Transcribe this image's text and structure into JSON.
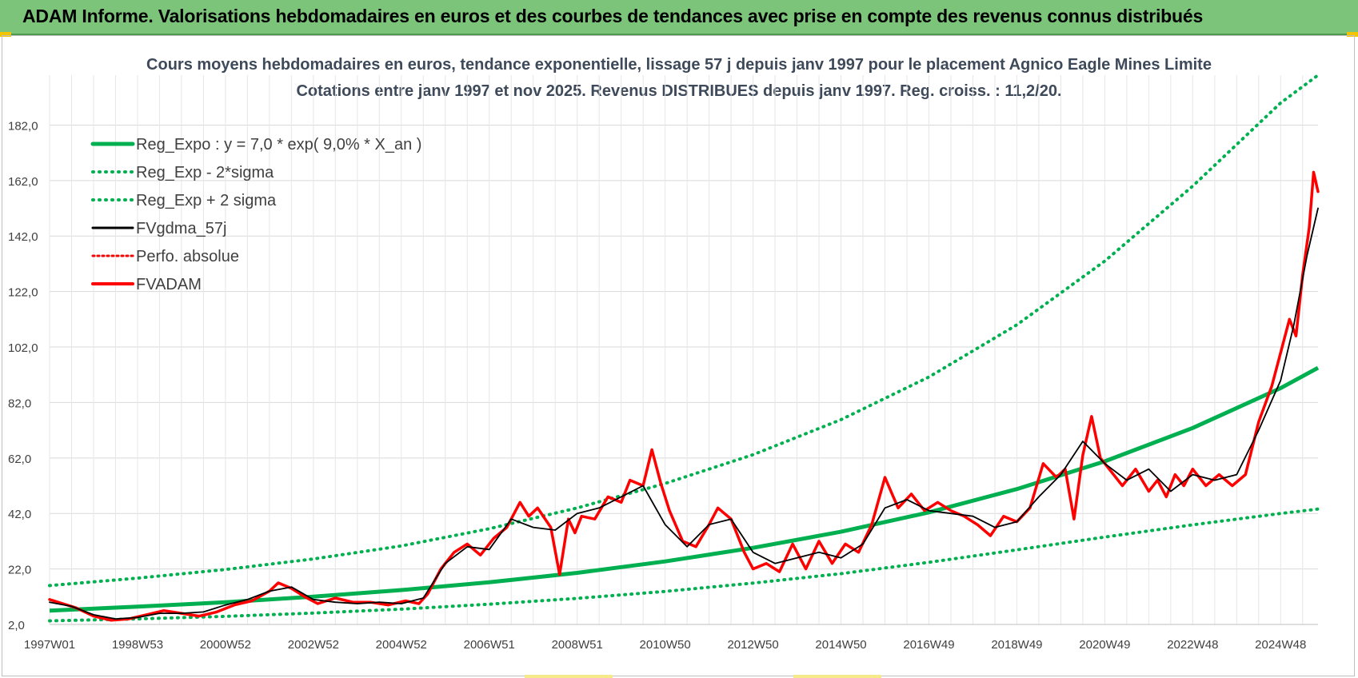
{
  "header": {
    "title": "ADAM Informe. Valorisations hebdomadaires en euros et des courbes de tendances avec prise en compte des revenus connus distribués"
  },
  "colors": {
    "banner": "#7cc47a",
    "trend_green": "#00b050",
    "smooth_black": "#000000",
    "price_red": "#ff0000",
    "grid": "#d9d9d9"
  },
  "chart_data": {
    "type": "line",
    "title": "Cours moyens hebdomadaires en euros, tendance exponentielle, lissage 57 j depuis janv 1997 pour le placement Agnico Eagle Mines Limite",
    "subtitle": "Cotations entre janv 1997 et nov 2025. Revenus DISTRIBUES depuis janv 1997. Reg. croiss. : 11,2/20.",
    "xlabel": "",
    "ylabel": "",
    "ylim": [
      2,
      200
    ],
    "xlim": [
      1997.0,
      2025.85
    ],
    "yticks": [
      "2,0",
      "22,0",
      "42,0",
      "62,0",
      "82,0",
      "102,0",
      "122,0",
      "142,0",
      "162,0",
      "182,0"
    ],
    "ytick_values": [
      2,
      22,
      42,
      62,
      82,
      102,
      122,
      142,
      162,
      182
    ],
    "xticks": [
      "1997W01",
      "1998W53",
      "2000W52",
      "2002W52",
      "2004W52",
      "2006W51",
      "2008W51",
      "2010W50",
      "2012W50",
      "2014W50",
      "2016W49",
      "2018W49",
      "2020W49",
      "2022W48",
      "2024W48"
    ],
    "xtick_values": [
      1997.0,
      1999.0,
      2001.0,
      2003.0,
      2005.0,
      2007.0,
      2009.0,
      2011.0,
      2013.0,
      2015.0,
      2017.0,
      2019.0,
      2021.0,
      2023.0,
      2025.0
    ],
    "legend": {
      "placement": "top-left",
      "entries": [
        "Reg_Expo : y = 7,0 * exp( 9,0% *  X_an )",
        "Reg_Exp - 2*sigma",
        "Reg_Exp + 2 sigma",
        "FVgdma_57j",
        "Perfo. absolue",
        "FVADAM"
      ]
    },
    "series": [
      {
        "name": "Reg_Expo : y = 7,0 * exp( 9,0% *  X_an )",
        "style": "solid",
        "color": "#00b050",
        "x": [
          1997.0,
          1999.0,
          2001.0,
          2003.0,
          2005.0,
          2007.0,
          2009.0,
          2011.0,
          2013.0,
          2015.0,
          2017.0,
          2019.0,
          2021.0,
          2023.0,
          2025.0,
          2025.85
        ],
        "values": [
          7.0,
          8.4,
          10.0,
          12.0,
          14.4,
          17.2,
          20.6,
          24.7,
          29.6,
          35.4,
          42.4,
          50.8,
          60.8,
          72.8,
          87.2,
          94.5
        ]
      },
      {
        "name": "Reg_Exp - 2*sigma",
        "style": "dotted",
        "color": "#00b050",
        "x": [
          1997.0,
          1999.0,
          2001.0,
          2003.0,
          2005.0,
          2007.0,
          2009.0,
          2011.0,
          2013.0,
          2015.0,
          2017.0,
          2019.0,
          2021.0,
          2023.0,
          2025.0,
          2025.85
        ],
        "values": [
          3.3,
          4.0,
          4.9,
          6.1,
          7.5,
          9.3,
          11.4,
          13.9,
          16.9,
          20.3,
          24.4,
          28.9,
          33.5,
          37.9,
          42.0,
          43.6
        ]
      },
      {
        "name": "Reg_Exp + 2 sigma",
        "style": "dotted",
        "color": "#00b050",
        "x": [
          1997.0,
          1999.0,
          2001.0,
          2003.0,
          2005.0,
          2007.0,
          2009.0,
          2011.0,
          2013.0,
          2015.0,
          2017.0,
          2019.0,
          2021.0,
          2023.0,
          2025.0,
          2025.85
        ],
        "values": [
          16.0,
          18.7,
          21.8,
          25.6,
          30.3,
          36.5,
          44.0,
          52.8,
          63.2,
          75.8,
          91.2,
          110.0,
          133.0,
          160.0,
          190.0,
          200.0
        ]
      },
      {
        "name": "FVgdma_57j",
        "style": "solid",
        "color": "#000000",
        "x": [
          1997.0,
          1997.5,
          1998.0,
          1998.5,
          1999.0,
          1999.5,
          2000.0,
          2000.5,
          2001.0,
          2001.5,
          2002.0,
          2002.5,
          2003.0,
          2003.5,
          2004.0,
          2004.5,
          2005.0,
          2005.5,
          2006.0,
          2006.5,
          2007.0,
          2007.5,
          2008.0,
          2008.5,
          2009.0,
          2009.5,
          2010.0,
          2010.5,
          2011.0,
          2011.5,
          2012.0,
          2012.5,
          2013.0,
          2013.5,
          2014.0,
          2014.5,
          2015.0,
          2015.5,
          2016.0,
          2016.5,
          2017.0,
          2017.5,
          2018.0,
          2018.5,
          2019.0,
          2019.5,
          2020.0,
          2020.5,
          2021.0,
          2021.5,
          2022.0,
          2022.5,
          2023.0,
          2023.5,
          2024.0,
          2024.5,
          2025.0,
          2025.3,
          2025.6,
          2025.85
        ],
        "values": [
          10.0,
          8.5,
          5.5,
          4.0,
          4.5,
          6.0,
          6.0,
          6.5,
          9.0,
          11.0,
          14.0,
          15.5,
          11.0,
          10.0,
          9.5,
          10.0,
          9.5,
          11.5,
          24.0,
          30.0,
          29.0,
          40.0,
          37.0,
          36.0,
          42.0,
          44.0,
          48.0,
          52.0,
          38.0,
          30.0,
          38.0,
          40.0,
          28.0,
          24.0,
          26.0,
          28.0,
          26.0,
          31.0,
          44.0,
          47.0,
          43.0,
          42.0,
          41.0,
          37.0,
          39.0,
          48.0,
          56.0,
          68.0,
          60.0,
          54.0,
          58.0,
          50.0,
          56.0,
          54.0,
          56.0,
          72.0,
          90.0,
          110.0,
          135.0,
          152.0
        ]
      },
      {
        "name": "FVADAM",
        "style": "solid",
        "color": "#ff0000",
        "x": [
          1997.0,
          1997.3,
          1997.6,
          1998.0,
          1998.4,
          1998.8,
          1999.2,
          1999.6,
          2000.0,
          2000.4,
          2000.8,
          2001.2,
          2001.6,
          2002.0,
          2002.2,
          2002.5,
          2002.8,
          2003.1,
          2003.5,
          2003.9,
          2004.3,
          2004.7,
          2005.1,
          2005.4,
          2005.6,
          2005.9,
          2006.2,
          2006.5,
          2006.8,
          2007.1,
          2007.4,
          2007.7,
          2007.9,
          2008.1,
          2008.4,
          2008.6,
          2008.8,
          2008.95,
          2009.1,
          2009.4,
          2009.7,
          2010.0,
          2010.2,
          2010.5,
          2010.7,
          2010.9,
          2011.1,
          2011.4,
          2011.7,
          2012.0,
          2012.2,
          2012.5,
          2012.8,
          2013.0,
          2013.3,
          2013.6,
          2013.9,
          2014.2,
          2014.5,
          2014.8,
          2015.1,
          2015.4,
          2015.7,
          2016.0,
          2016.3,
          2016.6,
          2016.9,
          2017.2,
          2017.5,
          2017.8,
          2018.1,
          2018.4,
          2018.7,
          2019.0,
          2019.3,
          2019.6,
          2019.9,
          2020.1,
          2020.3,
          2020.5,
          2020.7,
          2020.9,
          2021.1,
          2021.4,
          2021.7,
          2022.0,
          2022.2,
          2022.4,
          2022.6,
          2022.8,
          2023.0,
          2023.3,
          2023.6,
          2023.9,
          2024.2,
          2024.5,
          2024.8,
          2025.0,
          2025.2,
          2025.35,
          2025.5,
          2025.65,
          2025.75,
          2025.85
        ],
        "values": [
          11.0,
          9.5,
          8.0,
          5.0,
          3.5,
          4.0,
          5.5,
          7.0,
          6.0,
          5.0,
          6.5,
          9.0,
          10.5,
          14.0,
          17.0,
          15.0,
          12.0,
          9.5,
          11.5,
          10.0,
          10.0,
          9.0,
          10.5,
          9.5,
          13.0,
          22.0,
          28.0,
          31.0,
          27.0,
          33.0,
          37.0,
          46.0,
          41.0,
          44.0,
          37.0,
          20.0,
          40.0,
          35.0,
          41.0,
          40.0,
          48.0,
          46.0,
          54.0,
          52.0,
          65.0,
          53.0,
          43.0,
          32.0,
          30.0,
          38.0,
          44.0,
          40.0,
          28.0,
          22.0,
          24.0,
          21.0,
          31.0,
          22.0,
          32.0,
          24.0,
          31.0,
          28.0,
          38.0,
          55.0,
          44.0,
          49.0,
          43.0,
          46.0,
          43.0,
          41.0,
          38.0,
          34.0,
          41.0,
          39.0,
          44.0,
          60.0,
          55.0,
          58.0,
          40.0,
          63.0,
          77.0,
          62.0,
          58.0,
          52.0,
          58.0,
          50.0,
          54.0,
          48.0,
          56.0,
          52.0,
          58.0,
          52.0,
          56.0,
          52.0,
          56.0,
          75.0,
          88.0,
          100.0,
          112.0,
          106.0,
          128.0,
          145.0,
          165.0,
          158.0
        ]
      }
    ]
  }
}
